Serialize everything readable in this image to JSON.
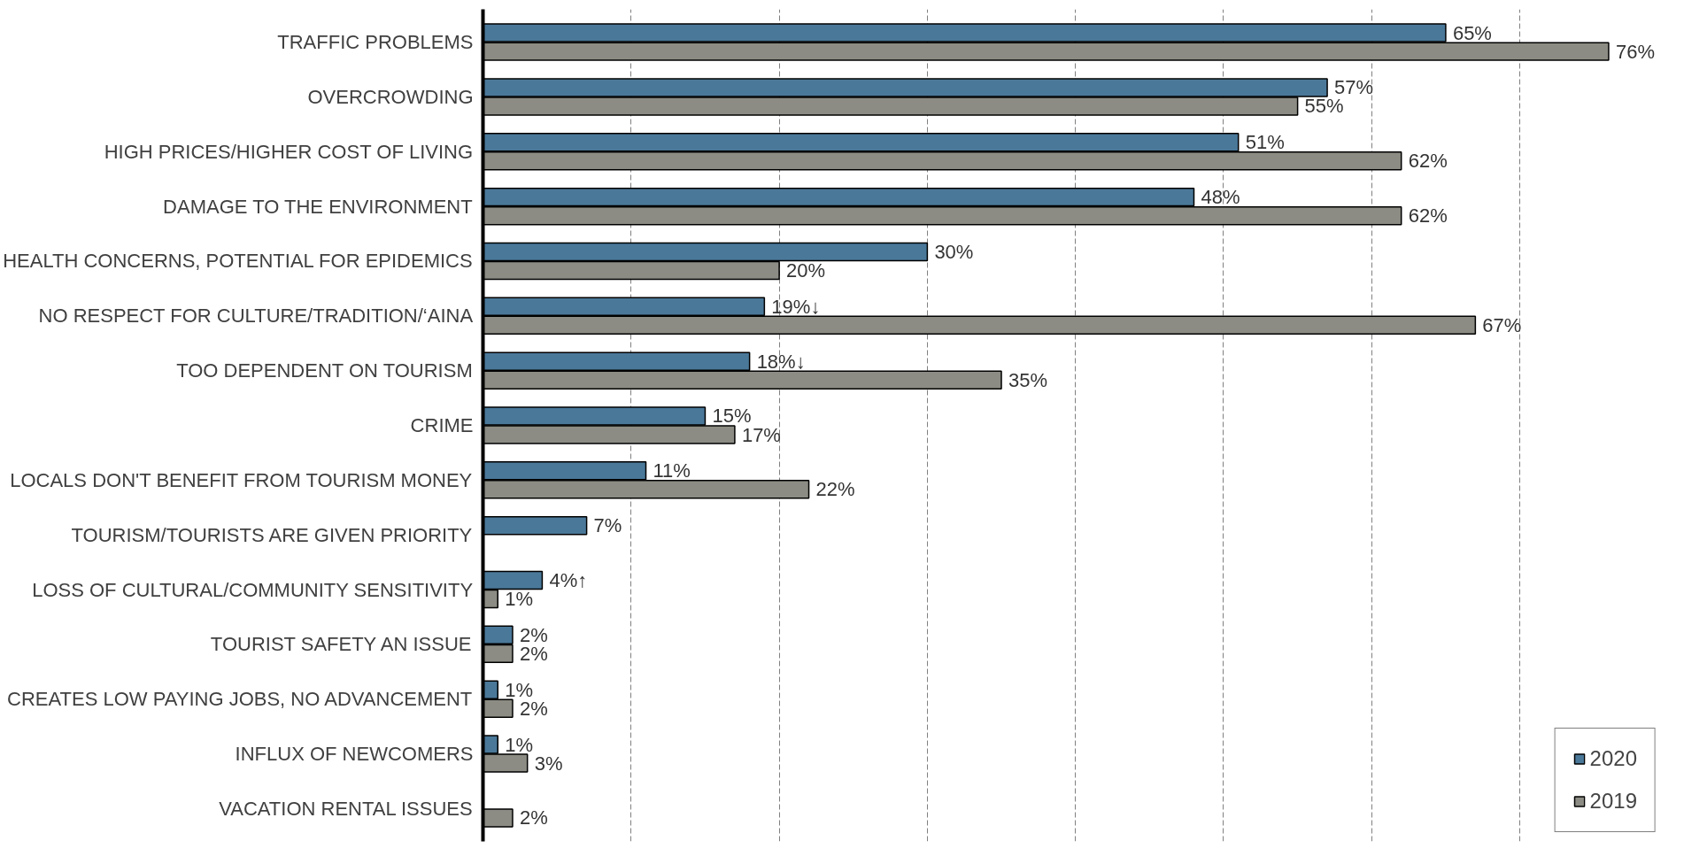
{
  "chart_data": {
    "type": "bar",
    "orientation": "horizontal",
    "categories": [
      "TRAFFIC PROBLEMS",
      "OVERCROWDING",
      "HIGH PRICES/HIGHER COST OF LIVING",
      "DAMAGE TO THE ENVIRONMENT",
      "HEALTH CONCERNS, POTENTIAL FOR EPIDEMICS",
      "NO RESPECT FOR CULTURE/TRADITION/‘AINA",
      "TOO DEPENDENT ON TOURISM",
      "CRIME",
      "LOCALS DON'T BENEFIT FROM TOURISM MONEY",
      "TOURISM/TOURISTS ARE GIVEN PRIORITY",
      "LOSS OF CULTURAL/COMMUNITY SENSITIVITY",
      "TOURIST SAFETY AN ISSUE",
      "CREATES LOW PAYING JOBS, NO ADVANCEMENT",
      "INFLUX OF NEWCOMERS",
      "VACATION RENTAL ISSUES"
    ],
    "series": [
      {
        "name": "2020",
        "color": "#4a7899",
        "values": [
          65,
          57,
          51,
          48,
          30,
          19,
          18,
          15,
          11,
          7,
          4,
          2,
          1,
          1,
          null
        ],
        "value_labels": [
          "65%",
          "57%",
          "51%",
          "48%",
          "30%",
          "19%↓",
          "18%↓",
          "15%",
          "11%",
          "7%",
          "4%↑",
          "2%",
          "1%",
          "1%",
          null
        ]
      },
      {
        "name": "2019",
        "color": "#8c8c84",
        "values": [
          76,
          55,
          62,
          62,
          20,
          67,
          35,
          17,
          22,
          null,
          1,
          2,
          2,
          3,
          2
        ],
        "value_labels": [
          "76%",
          "55%",
          "62%",
          "62%",
          "20%",
          "67%",
          "35%",
          "17%",
          "22%",
          null,
          "1%",
          "2%",
          "2%",
          "3%",
          "2%"
        ]
      }
    ],
    "xticks": [
      {
        "value": 10,
        "label": null
      },
      {
        "value": 20,
        "label": null
      },
      {
        "value": 30,
        "label": null
      },
      {
        "value": 40,
        "label": null
      },
      {
        "value": 50,
        "label": null
      },
      {
        "value": 60,
        "label": null
      },
      {
        "value": 70,
        "label": null
      },
      {
        "value": 80,
        "label": null
      }
    ],
    "grid": "x",
    "legend": "bottom right",
    "tick_labels": "y"
  }
}
